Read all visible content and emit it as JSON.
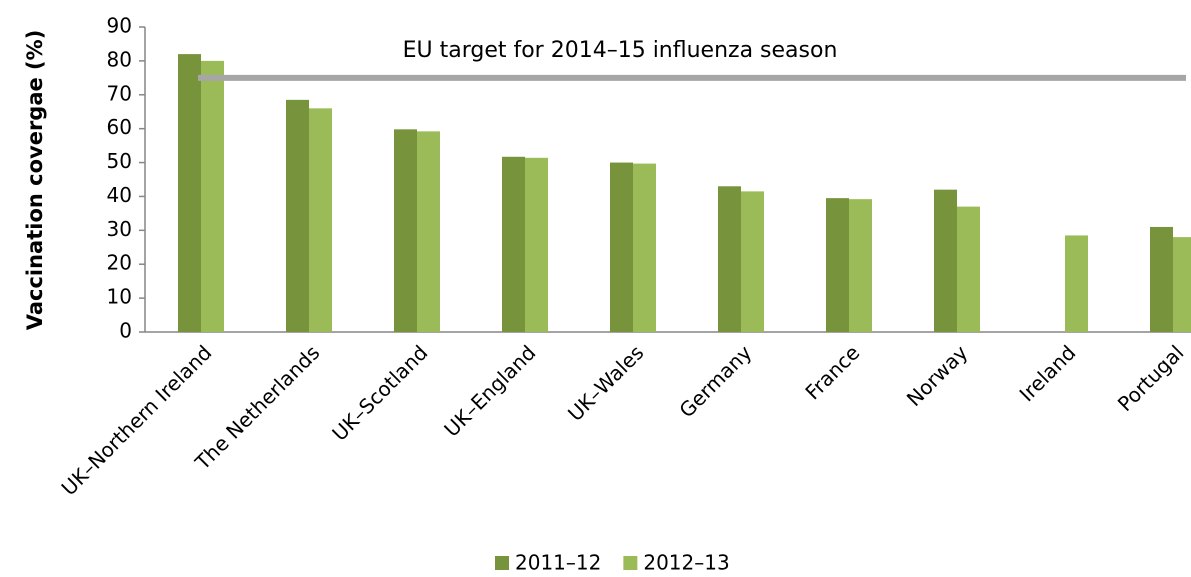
{
  "chart_data": {
    "type": "bar",
    "categories": [
      "UK–Northern Ireland",
      "The Netherlands",
      "UK–Scotland",
      "UK–England",
      "UK–Wales",
      "Germany",
      "France",
      "Norway",
      "Ireland",
      "Portugal"
    ],
    "series": [
      {
        "name": "2011–12",
        "color": "#77933c",
        "values": [
          82,
          68.5,
          59.8,
          51.7,
          50,
          43,
          39.5,
          42,
          null,
          31
        ]
      },
      {
        "name": "2012–13",
        "color": "#9bbb59",
        "values": [
          80,
          66,
          59.2,
          51.4,
          49.7,
          41.5,
          39.2,
          37,
          28.5,
          28
        ]
      }
    ],
    "ylabel": "Vaccination covergae (%)",
    "ylim": [
      0,
      90
    ],
    "yticks": [
      0,
      10,
      20,
      30,
      40,
      50,
      60,
      70,
      80,
      90
    ],
    "target": {
      "value": 75,
      "label": "EU target for 2014–15 influenza season",
      "color": "#a6a6a6"
    },
    "legend": "bottom"
  }
}
